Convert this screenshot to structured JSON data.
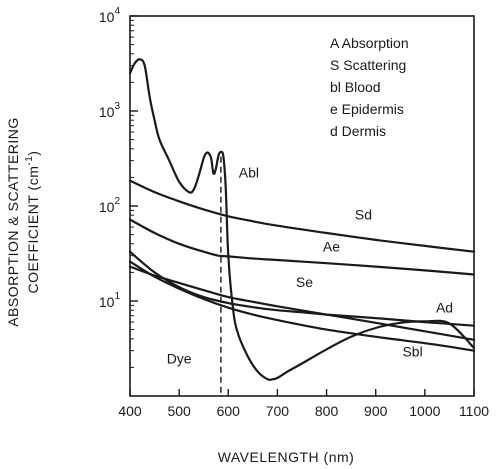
{
  "chart_data": {
    "type": "line",
    "xlabel": "WAVELENGTH (nm)",
    "ylabel_line1": "ABSORPTION & SCATTERING",
    "ylabel_line2": "COEFFICIENT (cm",
    "ylabel_line2_sup": "-1",
    "ylabel_line2_end": ")",
    "xlim": [
      400,
      1100
    ],
    "ylim": [
      1,
      10000
    ],
    "yscale": "log",
    "xticks": [
      400,
      500,
      600,
      700,
      800,
      900,
      1000,
      1100
    ],
    "xtick_labels": [
      "400",
      "500",
      "600",
      "700",
      "800",
      "900",
      "1000",
      "1100"
    ],
    "yticks": [
      {
        "value": 10,
        "base": "10",
        "exp": "1"
      },
      {
        "value": 100,
        "base": "10",
        "exp": "2"
      },
      {
        "value": 1000,
        "base": "10",
        "exp": "3"
      },
      {
        "value": 10000,
        "base": "10",
        "exp": "4"
      }
    ],
    "legend": [
      "A Absorption",
      "S Scattering",
      "bl Blood",
      "e Epidermis",
      "d Dermis"
    ],
    "legend_position": "top-right",
    "grid": false,
    "series": [
      {
        "name": "Abl",
        "x": [
          400,
          410,
          420,
          430,
          440,
          450,
          460,
          480,
          500,
          520,
          530,
          540,
          550,
          555,
          560,
          565,
          570,
          575,
          580,
          585,
          590,
          595,
          600,
          610,
          620,
          640,
          660,
          680,
          690,
          700,
          720,
          750,
          800,
          850,
          900,
          950,
          1000,
          1050,
          1100
        ],
        "y": [
          2500,
          3200,
          3500,
          3000,
          1400,
          800,
          500,
          300,
          180,
          140,
          150,
          210,
          320,
          360,
          360,
          320,
          220,
          250,
          340,
          370,
          330,
          150,
          30,
          8,
          4.5,
          2.6,
          1.8,
          1.5,
          1.5,
          1.55,
          1.8,
          2.2,
          3.1,
          4.2,
          5.2,
          5.9,
          6.1,
          5.8,
          3.2
        ]
      },
      {
        "name": "Sd",
        "x": [
          400,
          450,
          500,
          550,
          600,
          650,
          700,
          800,
          900,
          1000,
          1100
        ],
        "y": [
          185,
          140,
          112,
          92,
          78,
          69,
          62,
          52,
          44,
          38,
          33
        ]
      },
      {
        "name": "Ae",
        "x": [
          400,
          450,
          500,
          550,
          580,
          600,
          650,
          700,
          800,
          900,
          1000,
          1100
        ],
        "y": [
          72,
          52,
          40,
          33,
          30,
          29.5,
          28,
          27,
          25,
          23,
          21,
          19
        ]
      },
      {
        "name": "Se",
        "x": [
          400,
          450,
          500,
          550,
          600,
          650,
          700,
          800,
          900,
          1000,
          1100
        ],
        "y": [
          23,
          18.5,
          15.5,
          13,
          11,
          9.8,
          8.8,
          7.2,
          5.9,
          4.8,
          3.9
        ]
      },
      {
        "name": "Ad",
        "x": [
          400,
          450,
          500,
          550,
          600,
          650,
          700,
          750,
          800,
          900,
          1000,
          1100
        ],
        "y": [
          33,
          20,
          14,
          11,
          9.5,
          8.6,
          8,
          7.6,
          7.2,
          6.6,
          6,
          5.5
        ]
      }
    ],
    "reference_line": {
      "label": "Dye",
      "x": 585,
      "style": "dashed"
    },
    "curve_labels": [
      {
        "text": "Abl",
        "x": 642,
        "y": 200
      },
      {
        "text": "Sd",
        "x": 875,
        "y": 72
      },
      {
        "text": "Ae",
        "x": 810,
        "y": 33
      },
      {
        "text": "Se",
        "x": 755,
        "y": 14
      },
      {
        "text": "Ad",
        "x": 1040,
        "y": 7.6
      },
      {
        "text": "Sbl",
        "x": 975,
        "y": 2.6
      },
      {
        "text": "Dye",
        "x": 500,
        "y": 2.2
      }
    ],
    "unlabeled_curve_note": "Sbl",
    "sbl_series": {
      "name": "Sbl",
      "x": [
        400,
        450,
        500,
        550,
        600,
        650,
        700,
        800,
        900,
        1000,
        1050,
        1100
      ],
      "y": [
        26,
        18,
        13.5,
        10.5,
        8.5,
        7.2,
        6.3,
        5,
        4.2,
        3.6,
        3.3,
        3.0
      ]
    }
  }
}
